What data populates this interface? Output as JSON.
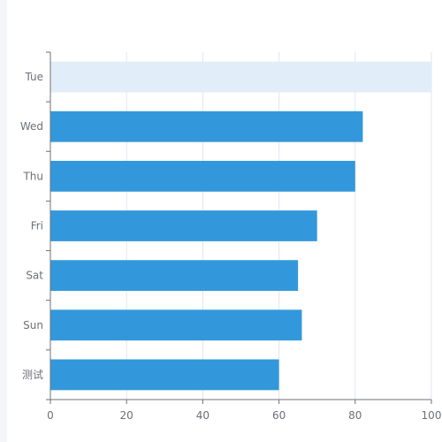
{
  "chart_data": {
    "type": "bar",
    "orientation": "horizontal",
    "title": "",
    "xlabel": "",
    "ylabel": "",
    "categories": [
      "测试",
      "Sun",
      "Sat",
      "Fri",
      "Thu",
      "Wed",
      "Tue"
    ],
    "values": [
      60,
      66,
      65,
      70,
      80,
      82,
      100
    ],
    "highlighted_category": "Tue",
    "xlim": [
      0,
      100
    ],
    "xticks": [
      "0",
      "20",
      "40",
      "60",
      "80",
      "100"
    ],
    "grid": true,
    "colors": {
      "bar": "#3398db",
      "highlight": "#e1eefa",
      "grid": "#e0e6f1",
      "axis": "#6e7079"
    }
  }
}
